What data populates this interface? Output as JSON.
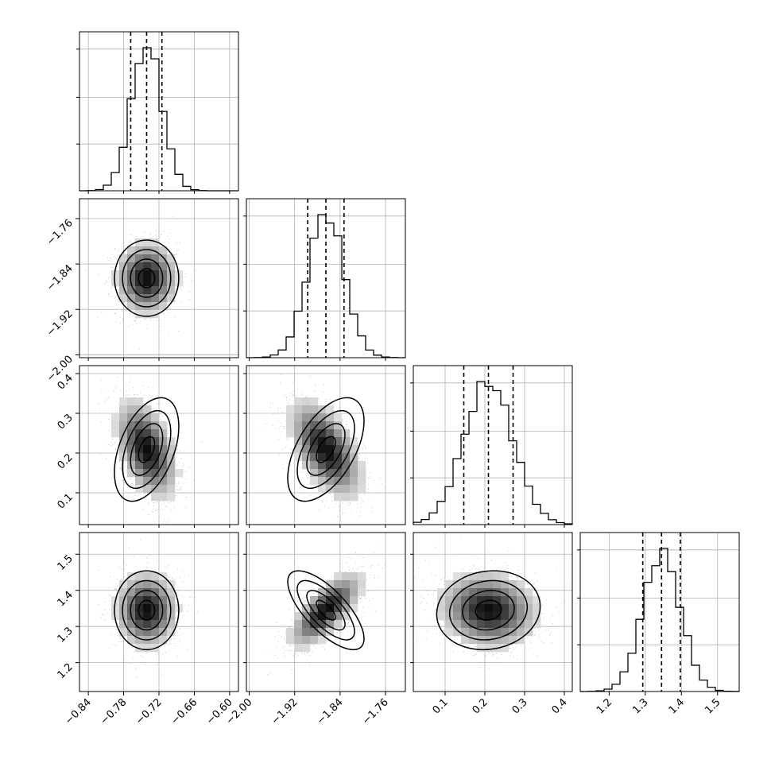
{
  "chart_data": {
    "type": "corner",
    "parameters": [
      {
        "range": [
          -0.855,
          -0.585
        ],
        "ticks": [
          -0.84,
          -0.78,
          -0.72,
          -0.66,
          -0.6
        ],
        "tick_labels": [
          "−0.84",
          "−0.78",
          "−0.72",
          "−0.66",
          "−0.60"
        ],
        "quantiles": [
          -0.768,
          -0.741,
          -0.715
        ],
        "mean": -0.741,
        "std": 0.026
      },
      {
        "range": [
          -2.005,
          -1.725
        ],
        "ticks": [
          -2.0,
          -1.92,
          -1.84,
          -1.76
        ],
        "tick_labels": [
          "−2.00",
          "−1.92",
          "−1.84",
          "−1.76"
        ],
        "quantiles": [
          -1.897,
          -1.865,
          -1.833
        ],
        "mean": -1.865,
        "std": 0.032
      },
      {
        "range": [
          0.02,
          0.42
        ],
        "ticks": [
          0.1,
          0.2,
          0.3,
          0.4
        ],
        "tick_labels": [
          "0.1",
          "0.2",
          "0.3",
          "0.4"
        ],
        "quantiles": [
          0.147,
          0.209,
          0.271
        ],
        "mean": 0.209,
        "std": 0.062
      },
      {
        "range": [
          1.12,
          1.56
        ],
        "ticks": [
          1.2,
          1.3,
          1.4,
          1.5
        ],
        "tick_labels": [
          "1.2",
          "1.3",
          "1.4",
          "1.5"
        ],
        "quantiles": [
          1.293,
          1.345,
          1.397
        ],
        "mean": 1.345,
        "std": 0.052
      }
    ],
    "correlations": [
      {
        "x": 0,
        "y": 1,
        "rho": 0.0
      },
      {
        "x": 0,
        "y": 2,
        "rho": -0.45
      },
      {
        "x": 1,
        "y": 2,
        "rho": -0.55
      },
      {
        "x": 0,
        "y": 3,
        "rho": 0.0
      },
      {
        "x": 1,
        "y": 3,
        "rho": 0.72
      },
      {
        "x": 2,
        "y": 3,
        "rho": -0.1
      }
    ],
    "histogram_bins": 20,
    "contour_levels_sigma": [
      0.5,
      1.0,
      1.5,
      2.0
    ],
    "grid": true,
    "colors": {
      "contour": "#000000",
      "density": "#000000",
      "points": "#b8b8b8",
      "grid": "#b0b0b0"
    }
  }
}
